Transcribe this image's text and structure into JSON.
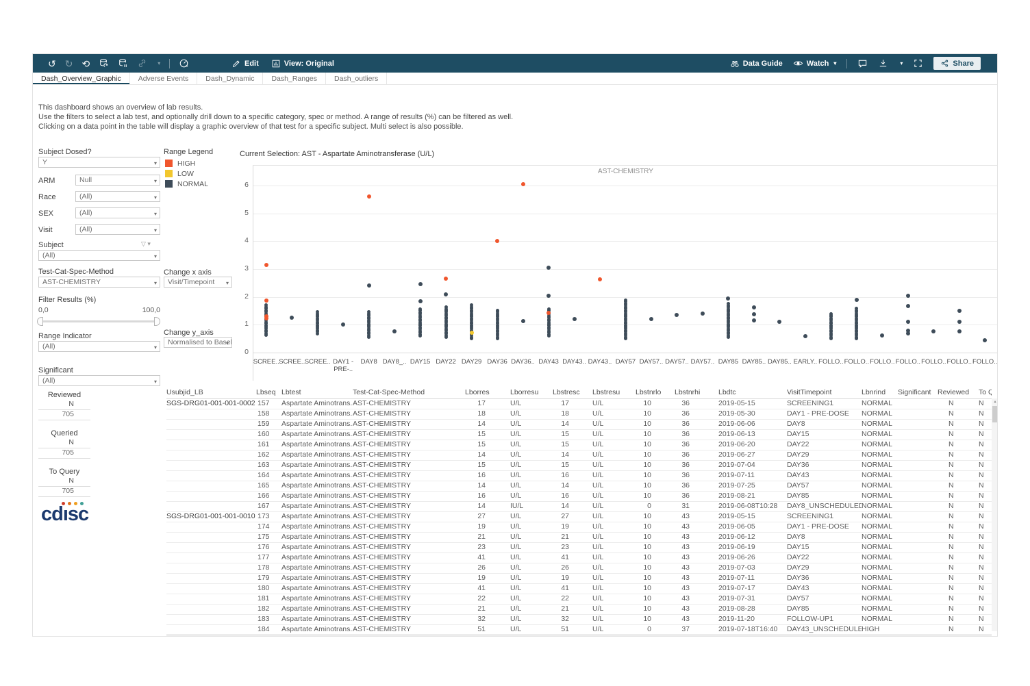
{
  "toolbar": {
    "edit": "Edit",
    "view": "View: Original",
    "data_guide": "Data Guide",
    "watch": "Watch",
    "share": "Share"
  },
  "tabs": [
    {
      "label": "Dash_Overview_Graphic",
      "active": true
    },
    {
      "label": "Adverse Events",
      "active": false
    },
    {
      "label": "Dash_Dynamic",
      "active": false
    },
    {
      "label": "Dash_Ranges",
      "active": false
    },
    {
      "label": "Dash_outliers",
      "active": false
    }
  ],
  "description": [
    "This dashboard shows an overview of lab results.",
    "Use the filters to select a lab test, and optionally drill down to a specific category, spec or method. A range of results (%) can be filtered as well.",
    "Clicking on a data point in the table will display a graphic overview of that test for a specific subject. Multi select is also possible."
  ],
  "filters": [
    {
      "label": "Subject Dosed?",
      "value": "Y",
      "inline": false
    },
    {
      "label": "ARM",
      "value": "Null",
      "inline": true
    },
    {
      "label": "Race",
      "value": "(All)",
      "inline": true
    },
    {
      "label": "SEX",
      "value": "(All)",
      "inline": true
    },
    {
      "label": "Visit",
      "value": "(All)",
      "inline": true
    },
    {
      "label": "Subject",
      "value": "(All)",
      "inline": false,
      "funnel": true
    },
    {
      "label": "Test-Cat-Spec-Method",
      "value": "AST-CHEMISTRY",
      "inline": false
    }
  ],
  "slider": {
    "label": "Filter Results (%)",
    "min_label": "0,0",
    "max_label": "100,0"
  },
  "filters2": [
    {
      "label": "Range Indicator",
      "value": "(All)"
    },
    {
      "label": "Significant",
      "value": "(All)"
    }
  ],
  "axis_controls": [
    {
      "label": "Change x axis",
      "value": "Visit/Timepoint"
    },
    {
      "label": "Change y_axis",
      "value": "Normalised to Basel..."
    }
  ],
  "legend": {
    "title": "Range Legend",
    "items": [
      {
        "label": "HIGH",
        "color": "#f0562d"
      },
      {
        "label": "LOW",
        "color": "#f2c72e"
      },
      {
        "label": "NORMAL",
        "color": "#3e4c59"
      }
    ]
  },
  "selection_title": "Current Selection: AST - Aspartate Aminotransferase (U/L)",
  "stats": [
    {
      "title": "Reviewed",
      "col": "N",
      "value": "705"
    },
    {
      "title": "Queried",
      "col": "N",
      "value": "705"
    },
    {
      "title": "To Query",
      "col": "N",
      "value": "705"
    }
  ],
  "logo_text": "cdısc",
  "chart_data": {
    "type": "scatter",
    "title": "AST-CHEMISTRY",
    "ylabel": "Normalised to Baseline",
    "ylim": [
      0,
      6.7
    ],
    "yticks": [
      0,
      1,
      2,
      3,
      4,
      5,
      6
    ],
    "grid": true,
    "point_colors": {
      "high": "#f0562d",
      "low": "#f2c72e",
      "normal": "#3e4c59"
    },
    "categories": [
      "SCREE..",
      "SCREE..",
      "SCREE..",
      "DAY1 -\nPRE-..",
      "DAY8",
      "DAY8_..",
      "DAY15",
      "DAY22",
      "DAY29",
      "DAY36",
      "DAY36..",
      "DAY43",
      "DAY43..",
      "DAY43..",
      "DAY57",
      "DAY57..",
      "DAY57..",
      "DAY57..",
      "DAY85",
      "DAY85..",
      "DAY85..",
      "EARLY..",
      "FOLLO..",
      "FOLLO..",
      "FOLLO..",
      "FOLLO..",
      "FOLLO..",
      "FOLLO..",
      "FOLLO.."
    ],
    "columns": [
      {
        "band": [
          0.62,
          1.75
        ],
        "points": [
          {
            "v": 3.15,
            "c": "high"
          },
          {
            "v": 1.87,
            "c": "high"
          },
          {
            "v": 1.3,
            "c": "high"
          },
          {
            "v": 1.22,
            "c": "high"
          }
        ]
      },
      {
        "points": [
          {
            "v": 1.25,
            "c": "normal"
          }
        ]
      },
      {
        "band": [
          0.68,
          1.5
        ]
      },
      {
        "points": [
          {
            "v": 1.0,
            "c": "normal"
          }
        ]
      },
      {
        "band": [
          0.55,
          1.5
        ],
        "points": [
          {
            "v": 5.6,
            "c": "high"
          },
          {
            "v": 2.4,
            "c": "normal"
          }
        ]
      },
      {
        "points": [
          {
            "v": 0.75,
            "c": "normal"
          }
        ]
      },
      {
        "band": [
          0.6,
          1.6
        ],
        "points": [
          {
            "v": 2.45,
            "c": "normal"
          },
          {
            "v": 1.85,
            "c": "normal"
          }
        ]
      },
      {
        "band": [
          0.55,
          1.65
        ],
        "points": [
          {
            "v": 2.65,
            "c": "high"
          },
          {
            "v": 2.1,
            "c": "normal"
          }
        ]
      },
      {
        "band": [
          0.5,
          1.7
        ],
        "points": [
          {
            "v": 0.72,
            "c": "low"
          }
        ]
      },
      {
        "band": [
          0.5,
          1.55
        ],
        "points": [
          {
            "v": 4.0,
            "c": "high"
          }
        ]
      },
      {
        "points": [
          {
            "v": 6.05,
            "c": "high"
          },
          {
            "v": 1.12,
            "c": "normal"
          }
        ]
      },
      {
        "band": [
          0.6,
          1.6
        ],
        "points": [
          {
            "v": 3.05,
            "c": "normal"
          },
          {
            "v": 2.05,
            "c": "normal"
          },
          {
            "v": 1.42,
            "c": "high"
          }
        ]
      },
      {
        "points": [
          {
            "v": 1.2,
            "c": "normal"
          }
        ]
      },
      {
        "points": [
          {
            "v": 2.62,
            "c": "high"
          }
        ]
      },
      {
        "band": [
          0.5,
          1.9
        ]
      },
      {
        "points": [
          {
            "v": 1.2,
            "c": "normal"
          }
        ]
      },
      {
        "points": [
          {
            "v": 1.36,
            "c": "normal"
          }
        ]
      },
      {
        "points": [
          {
            "v": 1.4,
            "c": "normal"
          }
        ]
      },
      {
        "band": [
          0.55,
          1.75
        ],
        "points": [
          {
            "v": 1.95,
            "c": "normal"
          }
        ]
      },
      {
        "points": [
          {
            "v": 1.15,
            "c": "normal"
          },
          {
            "v": 1.38,
            "c": "normal"
          },
          {
            "v": 1.62,
            "c": "normal"
          }
        ]
      },
      {
        "points": [
          {
            "v": 1.1,
            "c": "normal"
          }
        ]
      },
      {
        "points": [
          {
            "v": 0.58,
            "c": "normal"
          }
        ]
      },
      {
        "band": [
          0.5,
          1.45
        ]
      },
      {
        "band": [
          0.5,
          1.6
        ],
        "points": [
          {
            "v": 1.9,
            "c": "normal"
          }
        ]
      },
      {
        "points": [
          {
            "v": 0.62,
            "c": "normal"
          }
        ]
      },
      {
        "points": [
          {
            "v": 2.05,
            "c": "normal"
          },
          {
            "v": 1.68,
            "c": "normal"
          },
          {
            "v": 1.1,
            "c": "normal"
          },
          {
            "v": 0.78,
            "c": "normal"
          },
          {
            "v": 0.7,
            "c": "normal"
          }
        ]
      },
      {
        "points": [
          {
            "v": 0.75,
            "c": "normal"
          }
        ]
      },
      {
        "points": [
          {
            "v": 1.5,
            "c": "normal"
          },
          {
            "v": 1.1,
            "c": "normal"
          },
          {
            "v": 0.75,
            "c": "normal"
          }
        ]
      },
      {
        "points": [
          {
            "v": 0.45,
            "c": "normal"
          }
        ]
      }
    ]
  },
  "table": {
    "headers": [
      "Usubjid_LB",
      "Lbseq",
      "Lbtest",
      "Test-Cat-Spec-Method",
      "Lborres",
      "Lborresu",
      "Lbstresc",
      "Lbstresu",
      "Lbstnrlo",
      "Lbstnrhi",
      "Lbdtc",
      "VisitTimepoint",
      "Lbnrind",
      "Significant",
      "Reviewed",
      "To Query"
    ],
    "rows": [
      [
        "SGS-DRG01-001-001-0002",
        "157",
        "Aspartate Aminotrans..",
        "AST-CHEMISTRY",
        "17",
        "U/L",
        "17",
        "U/L",
        "10",
        "36",
        "2019-05-15",
        "SCREENING1",
        "NORMAL",
        "",
        "N",
        "N"
      ],
      [
        "",
        "158",
        "Aspartate Aminotrans..",
        "AST-CHEMISTRY",
        "18",
        "U/L",
        "18",
        "U/L",
        "10",
        "36",
        "2019-05-30",
        "DAY1 - PRE-DOSE",
        "NORMAL",
        "",
        "N",
        "N"
      ],
      [
        "",
        "159",
        "Aspartate Aminotrans..",
        "AST-CHEMISTRY",
        "14",
        "U/L",
        "14",
        "U/L",
        "10",
        "36",
        "2019-06-06",
        "DAY8",
        "NORMAL",
        "",
        "N",
        "N"
      ],
      [
        "",
        "160",
        "Aspartate Aminotrans..",
        "AST-CHEMISTRY",
        "15",
        "U/L",
        "15",
        "U/L",
        "10",
        "36",
        "2019-06-13",
        "DAY15",
        "NORMAL",
        "",
        "N",
        "N"
      ],
      [
        "",
        "161",
        "Aspartate Aminotrans..",
        "AST-CHEMISTRY",
        "15",
        "U/L",
        "15",
        "U/L",
        "10",
        "36",
        "2019-06-20",
        "DAY22",
        "NORMAL",
        "",
        "N",
        "N"
      ],
      [
        "",
        "162",
        "Aspartate Aminotrans..",
        "AST-CHEMISTRY",
        "14",
        "U/L",
        "14",
        "U/L",
        "10",
        "36",
        "2019-06-27",
        "DAY29",
        "NORMAL",
        "",
        "N",
        "N"
      ],
      [
        "",
        "163",
        "Aspartate Aminotrans..",
        "AST-CHEMISTRY",
        "15",
        "U/L",
        "15",
        "U/L",
        "10",
        "36",
        "2019-07-04",
        "DAY36",
        "NORMAL",
        "",
        "N",
        "N"
      ],
      [
        "",
        "164",
        "Aspartate Aminotrans..",
        "AST-CHEMISTRY",
        "16",
        "U/L",
        "16",
        "U/L",
        "10",
        "36",
        "2019-07-11",
        "DAY43",
        "NORMAL",
        "",
        "N",
        "N"
      ],
      [
        "",
        "165",
        "Aspartate Aminotrans..",
        "AST-CHEMISTRY",
        "14",
        "U/L",
        "14",
        "U/L",
        "10",
        "36",
        "2019-07-25",
        "DAY57",
        "NORMAL",
        "",
        "N",
        "N"
      ],
      [
        "",
        "166",
        "Aspartate Aminotrans..",
        "AST-CHEMISTRY",
        "16",
        "U/L",
        "16",
        "U/L",
        "10",
        "36",
        "2019-08-21",
        "DAY85",
        "NORMAL",
        "",
        "N",
        "N"
      ],
      [
        "",
        "167",
        "Aspartate Aminotrans..",
        "AST-CHEMISTRY",
        "14",
        "IU/L",
        "14",
        "U/L",
        "0",
        "31",
        "2019-06-08T10:28",
        "DAY8_UNSCHEDULED1",
        "NORMAL",
        "",
        "N",
        "N"
      ],
      [
        "SGS-DRG01-001-001-0010",
        "173",
        "Aspartate Aminotrans..",
        "AST-CHEMISTRY",
        "27",
        "U/L",
        "27",
        "U/L",
        "10",
        "43",
        "2019-05-15",
        "SCREENING1",
        "NORMAL",
        "",
        "N",
        "N"
      ],
      [
        "",
        "174",
        "Aspartate Aminotrans..",
        "AST-CHEMISTRY",
        "19",
        "U/L",
        "19",
        "U/L",
        "10",
        "43",
        "2019-06-05",
        "DAY1 - PRE-DOSE",
        "NORMAL",
        "",
        "N",
        "N"
      ],
      [
        "",
        "175",
        "Aspartate Aminotrans..",
        "AST-CHEMISTRY",
        "21",
        "U/L",
        "21",
        "U/L",
        "10",
        "43",
        "2019-06-12",
        "DAY8",
        "NORMAL",
        "",
        "N",
        "N"
      ],
      [
        "",
        "176",
        "Aspartate Aminotrans..",
        "AST-CHEMISTRY",
        "23",
        "U/L",
        "23",
        "U/L",
        "10",
        "43",
        "2019-06-19",
        "DAY15",
        "NORMAL",
        "",
        "N",
        "N"
      ],
      [
        "",
        "177",
        "Aspartate Aminotrans..",
        "AST-CHEMISTRY",
        "41",
        "U/L",
        "41",
        "U/L",
        "10",
        "43",
        "2019-06-26",
        "DAY22",
        "NORMAL",
        "",
        "N",
        "N"
      ],
      [
        "",
        "178",
        "Aspartate Aminotrans..",
        "AST-CHEMISTRY",
        "26",
        "U/L",
        "26",
        "U/L",
        "10",
        "43",
        "2019-07-03",
        "DAY29",
        "NORMAL",
        "",
        "N",
        "N"
      ],
      [
        "",
        "179",
        "Aspartate Aminotrans..",
        "AST-CHEMISTRY",
        "19",
        "U/L",
        "19",
        "U/L",
        "10",
        "43",
        "2019-07-11",
        "DAY36",
        "NORMAL",
        "",
        "N",
        "N"
      ],
      [
        "",
        "180",
        "Aspartate Aminotrans..",
        "AST-CHEMISTRY",
        "41",
        "U/L",
        "41",
        "U/L",
        "10",
        "43",
        "2019-07-17",
        "DAY43",
        "NORMAL",
        "",
        "N",
        "N"
      ],
      [
        "",
        "181",
        "Aspartate Aminotrans..",
        "AST-CHEMISTRY",
        "22",
        "U/L",
        "22",
        "U/L",
        "10",
        "43",
        "2019-07-31",
        "DAY57",
        "NORMAL",
        "",
        "N",
        "N"
      ],
      [
        "",
        "182",
        "Aspartate Aminotrans..",
        "AST-CHEMISTRY",
        "21",
        "U/L",
        "21",
        "U/L",
        "10",
        "43",
        "2019-08-28",
        "DAY85",
        "NORMAL",
        "",
        "N",
        "N"
      ],
      [
        "",
        "183",
        "Aspartate Aminotrans..",
        "AST-CHEMISTRY",
        "32",
        "U/L",
        "32",
        "U/L",
        "10",
        "43",
        "2019-11-20",
        "FOLLOW-UP1",
        "NORMAL",
        "",
        "N",
        "N"
      ],
      [
        "",
        "184",
        "Aspartate Aminotrans..",
        "AST-CHEMISTRY",
        "51",
        "U/L",
        "51",
        "U/L",
        "0",
        "37",
        "2019-07-18T16:40",
        "DAY43_UNSCHEDULED2",
        "HIGH",
        "",
        "N",
        "N"
      ]
    ]
  }
}
